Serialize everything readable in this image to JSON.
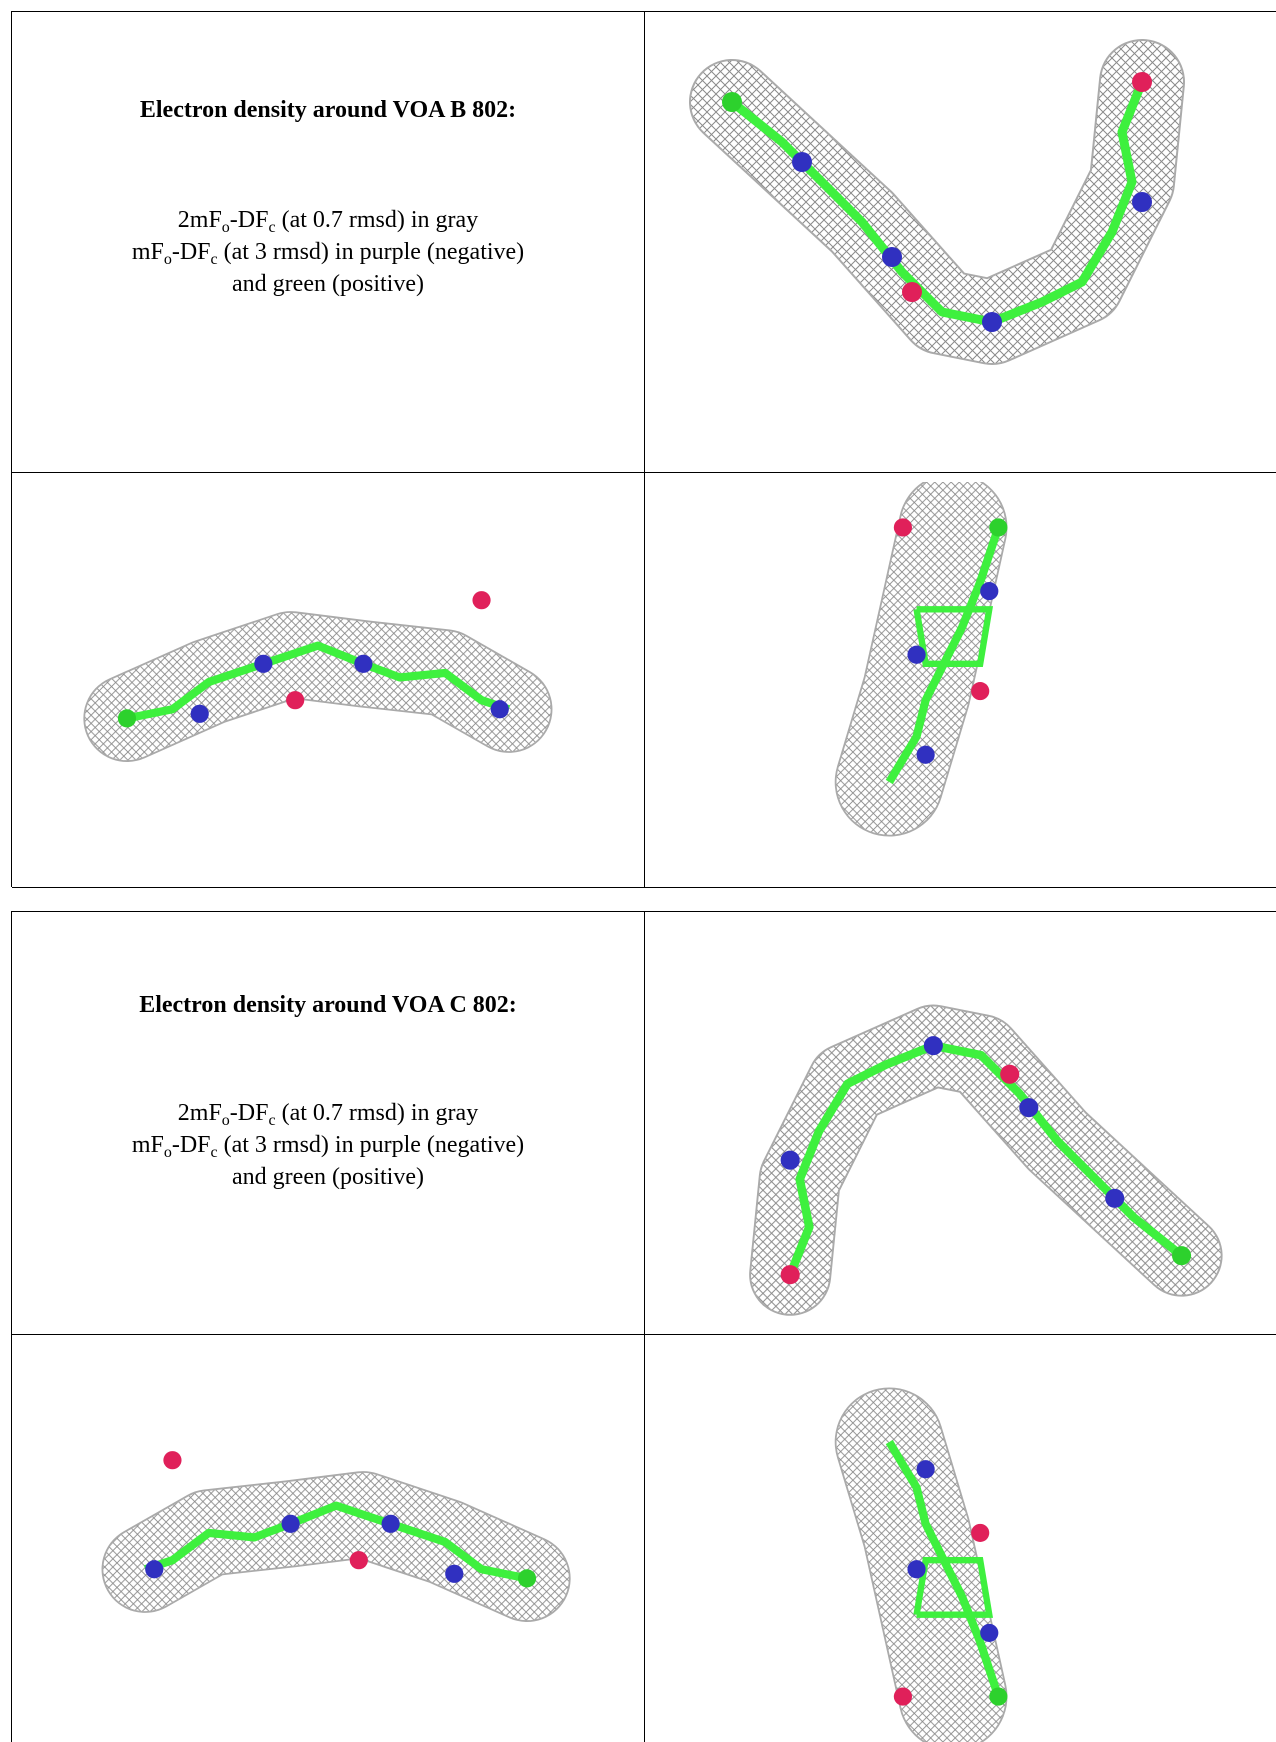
{
  "tables": [
    {
      "title": "Electron density around VOA B 802:",
      "lines": [
        {
          "parts": [
            "2mF",
            "o",
            "-DF",
            "c",
            " (at 0.7 rmsd) in gray"
          ]
        },
        {
          "parts": [
            "mF",
            "o",
            "-DF",
            "c",
            " (at 3 rmsd) in purple (negative)"
          ]
        },
        {
          "parts": [
            "and green (positive)"
          ]
        }
      ]
    },
    {
      "title": "Electron density around VOA C 802:",
      "lines": [
        {
          "parts": [
            "2mF",
            "o",
            "-DF",
            "c",
            " (at 0.7 rmsd) in gray"
          ]
        },
        {
          "parts": [
            "mF",
            "o",
            "-DF",
            "c",
            " (at 3 rmsd) in purple (negative)"
          ]
        },
        {
          "parts": [
            "and green (positive)"
          ]
        }
      ]
    }
  ]
}
